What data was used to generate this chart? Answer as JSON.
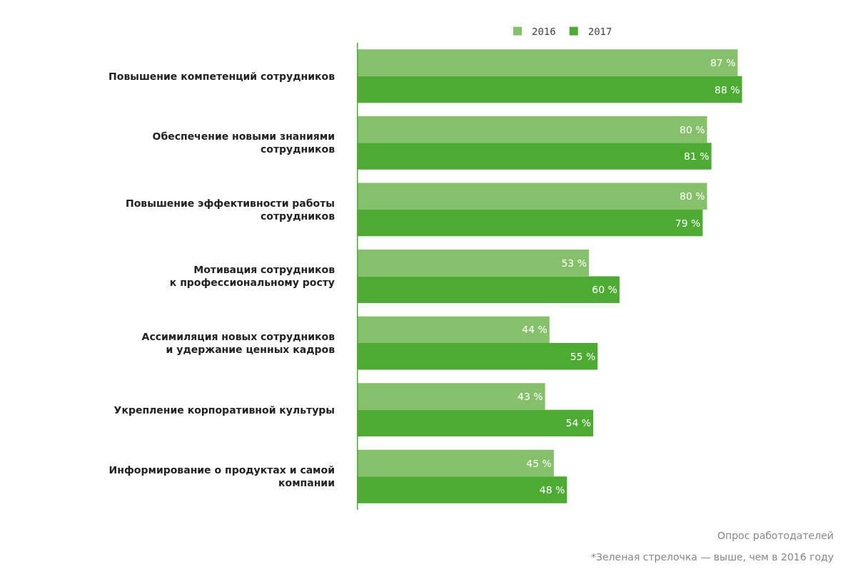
{
  "chart_data": {
    "type": "bar",
    "orientation": "horizontal",
    "legend": "top",
    "tick_labels": "y",
    "categories": [
      "Повышение компетенций сотрудников",
      "Обеспечение новыми знаниями\nсотрудников",
      "Повышение эффективности работы\nсотрудников",
      "Мотивация сотрудников\nк профессиональному росту",
      "Ассимиляция новых сотрудников\nи удержание ценных кадров",
      "Укрепление корпоративной культуры",
      "Информирование о продуктах и самой\nкомпании"
    ],
    "series": [
      {
        "name": "2016",
        "color": "#86c06a",
        "values": [
          87,
          80,
          80,
          53,
          44,
          43,
          45
        ],
        "value_labels": [
          "87 %",
          "80 %",
          "80 %",
          "53 %",
          "44 %",
          "43 %",
          "45 %"
        ]
      },
      {
        "name": "2017",
        "color": "#4dab34",
        "values": [
          88,
          81,
          79,
          60,
          55,
          54,
          48
        ],
        "value_labels": [
          "88 %",
          "81 %",
          "79 %",
          "60 %",
          "55 %",
          "54 %",
          "48 %"
        ]
      }
    ],
    "annotations": [
      "Опрос работодателей",
      "*Зеленая стрелочка — выше, чем в 2016 году"
    ]
  }
}
